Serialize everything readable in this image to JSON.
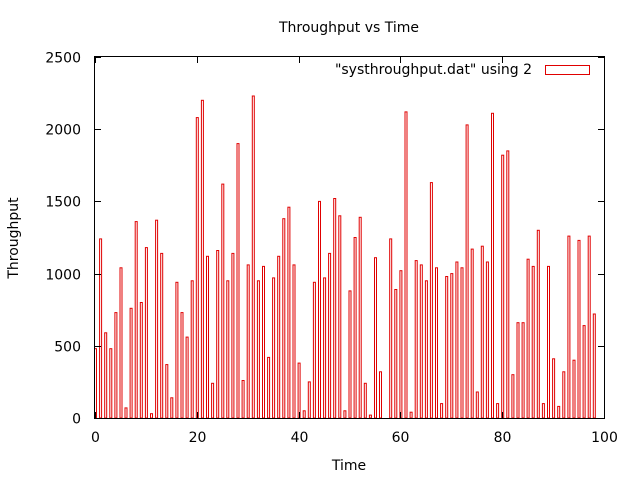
{
  "chart_data": {
    "type": "bar",
    "title": "Throughput vs Time",
    "xlabel": "Time",
    "ylabel": "Throughput",
    "xlim": [
      0,
      100
    ],
    "ylim": [
      0,
      2500
    ],
    "xticks": [
      "0",
      "20",
      "40",
      "60",
      "80",
      "100"
    ],
    "yticks": [
      "0",
      "500",
      "1000",
      "1500",
      "2000",
      "2500"
    ],
    "grid": false,
    "legend_position": "top-right",
    "series": [
      {
        "name": "\"systhroughput.dat\" using 2",
        "color": "#e00000",
        "x": [
          0,
          1,
          2,
          3,
          4,
          5,
          6,
          7,
          8,
          9,
          10,
          11,
          12,
          13,
          14,
          15,
          16,
          17,
          18,
          19,
          20,
          21,
          22,
          23,
          24,
          25,
          26,
          27,
          28,
          29,
          30,
          31,
          32,
          33,
          34,
          35,
          36,
          37,
          38,
          39,
          40,
          41,
          42,
          43,
          44,
          45,
          46,
          47,
          48,
          49,
          50,
          51,
          52,
          53,
          54,
          55,
          56,
          57,
          58,
          59,
          60,
          61,
          62,
          63,
          64,
          65,
          66,
          67,
          68,
          69,
          70,
          71,
          72,
          73,
          74,
          75,
          76,
          77,
          78,
          79,
          80,
          81,
          82,
          83,
          84,
          85,
          86,
          87,
          88,
          89,
          90,
          91,
          92,
          93,
          94,
          95,
          96,
          97,
          98
        ],
        "values": [
          480,
          1240,
          590,
          480,
          730,
          1040,
          70,
          760,
          1360,
          800,
          1180,
          30,
          1370,
          1140,
          370,
          140,
          940,
          730,
          560,
          950,
          2080,
          2200,
          1120,
          240,
          1160,
          1620,
          950,
          1140,
          1900,
          260,
          1060,
          2230,
          950,
          1050,
          420,
          970,
          1120,
          1380,
          1460,
          1060,
          380,
          50,
          250,
          940,
          1500,
          970,
          1140,
          1520,
          1400,
          50,
          880,
          1250,
          1390,
          240,
          20,
          1110,
          320,
          0,
          1240,
          890,
          1020,
          2120,
          40,
          1090,
          1060,
          950,
          1630,
          1040,
          100,
          980,
          1000,
          1080,
          1040,
          2030,
          1170,
          180,
          1190,
          1080,
          2110,
          100,
          1820,
          1850,
          300,
          660,
          660,
          1100,
          1050,
          1300,
          100,
          1050,
          410,
          80,
          320,
          1260,
          400,
          1230,
          640,
          1260,
          720
        ]
      }
    ]
  }
}
